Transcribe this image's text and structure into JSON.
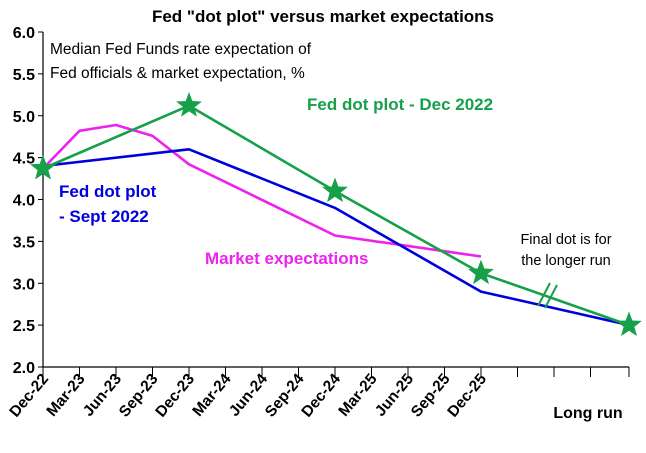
{
  "chart_data": {
    "type": "line",
    "title": "Fed \"dot plot\" versus market expectations",
    "subtitle_lines": [
      "Median Fed Funds rate expectation of",
      "Fed officials & market expectation, %"
    ],
    "x_tick_labels": [
      "Dec-22",
      "Mar-23",
      "Jun-23",
      "Sep-23",
      "Dec-23",
      "Mar-24",
      "Jun-24",
      "Sep-24",
      "Dec-24",
      "Mar-25",
      "Jun-25",
      "Sep-25",
      "Dec-25"
    ],
    "x_extra_label": "Long run",
    "ylim": [
      2.0,
      6.0
    ],
    "y_ticks": [
      "2.0",
      "2.5",
      "3.0",
      "3.5",
      "4.0",
      "4.5",
      "5.0",
      "5.5",
      "6.0"
    ],
    "grid": false,
    "series": [
      {
        "name": "Fed dot plot - Sept 2022",
        "label_lines": [
          "Fed dot plot",
          "- Sept 2022"
        ],
        "color": "#0000dd",
        "points": [
          {
            "x": "Dec-22",
            "y": 4.4
          },
          {
            "x": "Dec-23",
            "y": 4.6
          },
          {
            "x": "Dec-24",
            "y": 3.9
          },
          {
            "x": "Dec-25",
            "y": 2.9
          },
          {
            "x": "Long run",
            "y": 2.5
          }
        ]
      },
      {
        "name": "Market expectations",
        "label_lines": [
          "Market expectations"
        ],
        "color": "#ee22ee",
        "points": [
          {
            "x": "Dec-22",
            "y": 4.37
          },
          {
            "x": "Mar-23",
            "y": 4.82
          },
          {
            "x": "Jun-23",
            "y": 4.89
          },
          {
            "x": "Sep-23",
            "y": 4.76
          },
          {
            "x": "Dec-23",
            "y": 4.42
          },
          {
            "x": "Dec-24",
            "y": 3.57
          },
          {
            "x": "Dec-25",
            "y": 3.32
          }
        ]
      },
      {
        "name": "Fed dot plot - Dec 2022",
        "label_lines": [
          "Fed dot plot - Dec 2022"
        ],
        "color": "#16a04a",
        "marker": "star",
        "points": [
          {
            "x": "Dec-22",
            "y": 4.37
          },
          {
            "x": "Dec-23",
            "y": 5.12
          },
          {
            "x": "Dec-24",
            "y": 4.1
          },
          {
            "x": "Dec-25",
            "y": 3.12
          },
          {
            "x": "Long run",
            "y": 2.5
          }
        ]
      }
    ],
    "annotation_lines": [
      "Final dot is for",
      "the longer run"
    ]
  }
}
